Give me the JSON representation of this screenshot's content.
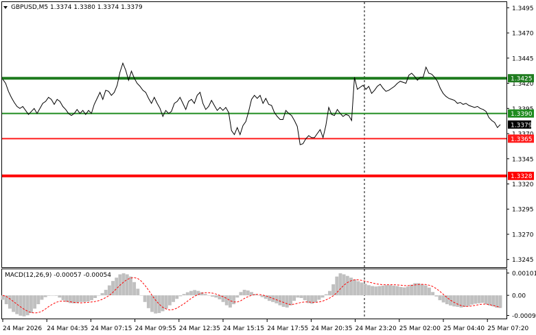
{
  "chart_data": [
    {
      "type": "line",
      "title": "GBPUSD,M5  1.3374 1.3380 1.3374 1.3379",
      "symbol": "GBPUSD,M5",
      "ohlc": [
        "1.3374",
        "1.3380",
        "1.3374",
        "1.3379"
      ],
      "y_ticks": [
        "1.3495",
        "1.3470",
        "1.3445",
        "1.3420",
        "1.3395",
        "1.3370",
        "1.3345",
        "1.3320",
        "1.3295",
        "1.3270",
        "1.3245"
      ],
      "ylim": [
        1.3238,
        1.35
      ],
      "x_ticks": [
        "24 Mar 2026",
        "24 Mar 04:35",
        "24 Mar 07:15",
        "24 Mar 09:55",
        "24 Mar 12:35",
        "24 Mar 15:15",
        "24 Mar 17:55",
        "24 Mar 20:35",
        "24 Mar 23:20",
        "25 Mar 02:00",
        "25 Mar 04:40",
        "25 Mar 07:20"
      ],
      "current_price": "1.3379",
      "levels": [
        {
          "value": 1.3425,
          "label": "1.3425",
          "color": "#1e7b1e",
          "weight": "thick"
        },
        {
          "value": 1.339,
          "label": "1.3390",
          "color": "#1e8b1e",
          "weight": "thin"
        },
        {
          "value": 1.3365,
          "label": "1.3365",
          "color": "#ff1a1a",
          "weight": "thin"
        },
        {
          "value": 1.3328,
          "label": "1.3328",
          "color": "#ff0000",
          "weight": "thick"
        }
      ],
      "series": [
        {
          "values": [
            1.3424,
            1.342,
            1.3412,
            1.3406,
            1.3401,
            1.3397,
            1.3395,
            1.3397,
            1.3393,
            1.3389,
            1.3392,
            1.3395,
            1.339,
            1.3395,
            1.34,
            1.3402,
            1.3406,
            1.3404,
            1.3399,
            1.3404,
            1.3402,
            1.3397,
            1.3394,
            1.339,
            1.3388,
            1.339,
            1.3394,
            1.339,
            1.3393,
            1.3389,
            1.3393,
            1.339,
            1.3399,
            1.3405,
            1.3411,
            1.3404,
            1.3413,
            1.3412,
            1.3408,
            1.3411,
            1.3418,
            1.3431,
            1.344,
            1.3433,
            1.3423,
            1.3432,
            1.3425,
            1.342,
            1.3417,
            1.3413,
            1.3411,
            1.3405,
            1.34,
            1.3406,
            1.34,
            1.3395,
            1.3387,
            1.3393,
            1.339,
            1.3392,
            1.34,
            1.3402,
            1.3406,
            1.34,
            1.3394,
            1.3402,
            1.3404,
            1.34,
            1.3408,
            1.3411,
            1.34,
            1.3394,
            1.3397,
            1.3403,
            1.3398,
            1.3393,
            1.3396,
            1.3393,
            1.3396,
            1.3391,
            1.3373,
            1.3369,
            1.3376,
            1.3369,
            1.3378,
            1.3382,
            1.3392,
            1.3404,
            1.3408,
            1.3405,
            1.3408,
            1.34,
            1.3405,
            1.3399,
            1.3398,
            1.3391,
            1.3387,
            1.3384,
            1.3384,
            1.3393,
            1.339,
            1.3388,
            1.3383,
            1.3377,
            1.3359,
            1.336,
            1.3365,
            1.3368,
            1.3366,
            1.3366,
            1.337,
            1.3374,
            1.3366,
            1.3378,
            1.3396,
            1.3389,
            1.3388,
            1.3394,
            1.339,
            1.3387,
            1.3389,
            1.3388,
            1.3383,
            1.3426,
            1.3414,
            1.3416,
            1.3418,
            1.3414,
            1.3417,
            1.341,
            1.3413,
            1.3417,
            1.3419,
            1.3415,
            1.3412,
            1.3413,
            1.3415,
            1.3417,
            1.342,
            1.3422,
            1.3421,
            1.342,
            1.3428,
            1.343,
            1.3427,
            1.3423,
            1.3426,
            1.3426,
            1.3436,
            1.343,
            1.3429,
            1.3426,
            1.3422,
            1.3415,
            1.341,
            1.3407,
            1.3405,
            1.3404,
            1.3403,
            1.34,
            1.3401,
            1.3399,
            1.34,
            1.3398,
            1.3397,
            1.3396,
            1.3397,
            1.3395,
            1.3394,
            1.3392,
            1.3386,
            1.3383,
            1.3381,
            1.3376,
            1.3379
          ]
        }
      ]
    },
    {
      "type": "bar",
      "title": "MACD(12,26,9) -0.00057 -0.00054",
      "y_ticks": [
        "0.00101",
        "0.00",
        "-0.00091"
      ],
      "ylim": [
        -0.00105,
        0.00115
      ],
      "series": [
        {
          "values": [
            -0.0002,
            -0.0004,
            -0.0006,
            -0.00075,
            -0.00085,
            -0.00092,
            -0.00095,
            -0.0009,
            -0.0008,
            -0.0006,
            -0.0004,
            -0.0002,
            -8e-05,
            -2e-05,
            0.0,
            -2e-05,
            -0.0001,
            -0.00022,
            -0.0003,
            -0.00035,
            -0.00036,
            -0.00035,
            -0.0003,
            -0.0003,
            -0.00028,
            -0.00022,
            -0.00012,
            0.0,
            0.0001,
            0.00025,
            0.00045,
            0.00065,
            0.0008,
            0.00095,
            0.001,
            0.00095,
            0.00085,
            0.0006,
            0.0003,
            0.0,
            -0.0003,
            -0.00058,
            -0.00075,
            -0.00082,
            -0.0008,
            -0.00072,
            -0.0006,
            -0.00045,
            -0.0003,
            -0.00016,
            -4e-05,
            6e-05,
            0.00014,
            0.0002,
            0.00024,
            0.0002,
            0.00014,
            6e-05,
            0.0,
            -6e-05,
            -0.0001,
            -0.00018,
            -0.0003,
            -0.00045,
            -0.00055,
            -0.0004,
            -0.0001,
            0.00015,
            0.00025,
            0.00022,
            0.00015,
            6e-05,
            0.0,
            -8e-05,
            -0.00016,
            -0.00025,
            -0.0003,
            -0.00036,
            -0.00045,
            -0.00052,
            -0.00055,
            -0.00045,
            -0.00025,
            -0.0001,
            -0.00012,
            -0.00022,
            -0.00035,
            -0.00038,
            -0.00032,
            -0.0002,
            -0.0001,
            5e-05,
            0.0002,
            0.0005,
            0.00085,
            0.001,
            0.00095,
            0.00088,
            0.0008,
            0.00072,
            0.00064,
            0.00058,
            0.00052,
            0.00046,
            0.00042,
            0.0004,
            0.00042,
            0.00044,
            0.00046,
            0.00046,
            0.00044,
            0.00042,
            0.00038,
            0.00036,
            0.0004,
            0.00048,
            0.00055,
            0.00055,
            0.0005,
            0.00045,
            0.00035,
            0.00015,
            -5e-05,
            -0.00022,
            -0.00032,
            -0.0004,
            -0.00046,
            -0.0005,
            -0.00052,
            -0.00055,
            -0.00052,
            -0.00048,
            -0.00042,
            -0.00038,
            -0.00036,
            -0.00034,
            -0.0004,
            -0.00046,
            -0.0005,
            -0.00056,
            -0.00057
          ]
        },
        {
          "values": [
            0.0,
            -5e-05,
            -0.00016,
            -0.00028,
            -0.0004,
            -0.00052,
            -0.00063,
            -0.00072,
            -0.00078,
            -0.0008,
            -0.00078,
            -0.00072,
            -0.00062,
            -0.0005,
            -0.0004,
            -0.00032,
            -0.00027,
            -0.00026,
            -0.00027,
            -0.00029,
            -0.00032,
            -0.00033,
            -0.00034,
            -0.00033,
            -0.00032,
            -0.0003,
            -0.00028,
            -0.00024,
            -0.00018,
            -0.0001,
            0.0,
            0.00014,
            0.0003,
            0.00046,
            0.0006,
            0.00072,
            0.00078,
            0.0008,
            0.00076,
            0.00064,
            0.00046,
            0.00024,
            0.0,
            -0.00022,
            -0.0004,
            -0.00054,
            -0.00062,
            -0.00066,
            -0.00064,
            -0.00058,
            -0.00048,
            -0.00038,
            -0.00026,
            -0.00014,
            -4e-05,
            4e-05,
            0.0001,
            0.00012,
            0.00012,
            0.0001,
            6e-05,
            0.0,
            -6e-05,
            -0.00014,
            -0.00024,
            -0.0003,
            -0.0003,
            -0.00024,
            -0.00014,
            -6e-05,
            0.0,
            4e-05,
            4e-05,
            2e-05,
            -2e-05,
            -8e-05,
            -0.00014,
            -0.0002,
            -0.00026,
            -0.00032,
            -0.00038,
            -0.00042,
            -0.0004,
            -0.00036,
            -0.00032,
            -0.0003,
            -0.0003,
            -0.00032,
            -0.00032,
            -0.0003,
            -0.00026,
            -0.0002,
            -0.00012,
            -2e-05,
            0.00012,
            0.0003,
            0.00046,
            0.00058,
            0.00066,
            0.0007,
            0.0007,
            0.00068,
            0.00064,
            0.0006,
            0.00056,
            0.00052,
            0.0005,
            0.00048,
            0.00048,
            0.00048,
            0.00048,
            0.00047,
            0.00046,
            0.00044,
            0.00044,
            0.00045,
            0.00047,
            0.00049,
            0.0005,
            0.00049,
            0.00046,
            0.0004,
            0.0003,
            0.00018,
            4e-05,
            -0.0001,
            -0.00022,
            -0.00032,
            -0.0004,
            -0.00046,
            -0.0005,
            -0.0005,
            -0.00048,
            -0.00045,
            -0.00042,
            -0.0004,
            -0.0004,
            -0.00042,
            -0.00046,
            -0.0005,
            -0.00054
          ]
        }
      ]
    }
  ]
}
